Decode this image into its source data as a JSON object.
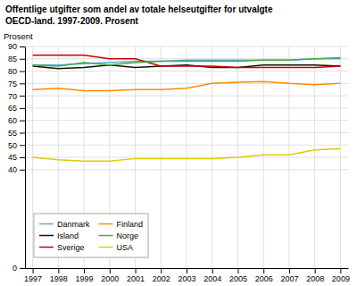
{
  "chart_data": {
    "type": "line",
    "title": "Offentlige utgifter som andel av totale helseutgifter for utvalgte\nOECD-land. 1997-2009. Prosent",
    "y_label": "Prosent",
    "x": [
      1997,
      1998,
      1999,
      2000,
      2001,
      2002,
      2003,
      2004,
      2005,
      2006,
      2007,
      2008,
      2009
    ],
    "series": [
      {
        "name": "Danmark",
        "color": "#55aadd",
        "values": [
          82.5,
          82.5,
          83.0,
          83.5,
          84.0,
          84.0,
          84.5,
          84.5,
          84.5,
          84.5,
          84.5,
          85.0,
          85.0
        ]
      },
      {
        "name": "Island",
        "color": "#111111",
        "values": [
          82.0,
          81.0,
          81.5,
          82.5,
          81.5,
          82.0,
          82.5,
          81.5,
          81.5,
          82.5,
          82.5,
          82.5,
          82.0
        ]
      },
      {
        "name": "Sverige",
        "color": "#cc0000",
        "values": [
          86.5,
          86.5,
          86.5,
          85.0,
          85.0,
          82.0,
          82.0,
          82.0,
          81.5,
          81.5,
          81.5,
          81.5,
          82.0
        ]
      },
      {
        "name": "Finland",
        "color": "#ff8c00",
        "values": [
          72.5,
          73.0,
          72.0,
          72.0,
          72.5,
          72.5,
          73.0,
          75.0,
          75.5,
          75.8,
          75.0,
          74.5,
          75.0
        ]
      },
      {
        "name": "Norge",
        "color": "#44aa44",
        "values": [
          82.5,
          82.0,
          83.5,
          82.5,
          83.5,
          84.0,
          84.0,
          84.0,
          84.0,
          84.5,
          84.5,
          85.0,
          85.5
        ]
      },
      {
        "name": "USA",
        "color": "#ddcc00",
        "values": [
          45.0,
          44.0,
          43.5,
          43.5,
          44.5,
          44.5,
          44.5,
          44.5,
          45.0,
          46.0,
          46.0,
          48.0,
          48.5
        ]
      }
    ],
    "xlim": [
      1996.7,
      2009.3
    ],
    "xticks": [
      1997,
      1998,
      1999,
      2000,
      2001,
      2002,
      2003,
      2004,
      2005,
      2006,
      2007,
      2008,
      2009
    ],
    "ylim": [
      0,
      90
    ],
    "yticks": [
      0,
      40,
      45,
      50,
      55,
      60,
      65,
      70,
      75,
      80,
      85,
      90
    ],
    "grid": true,
    "legend": "lower left"
  }
}
